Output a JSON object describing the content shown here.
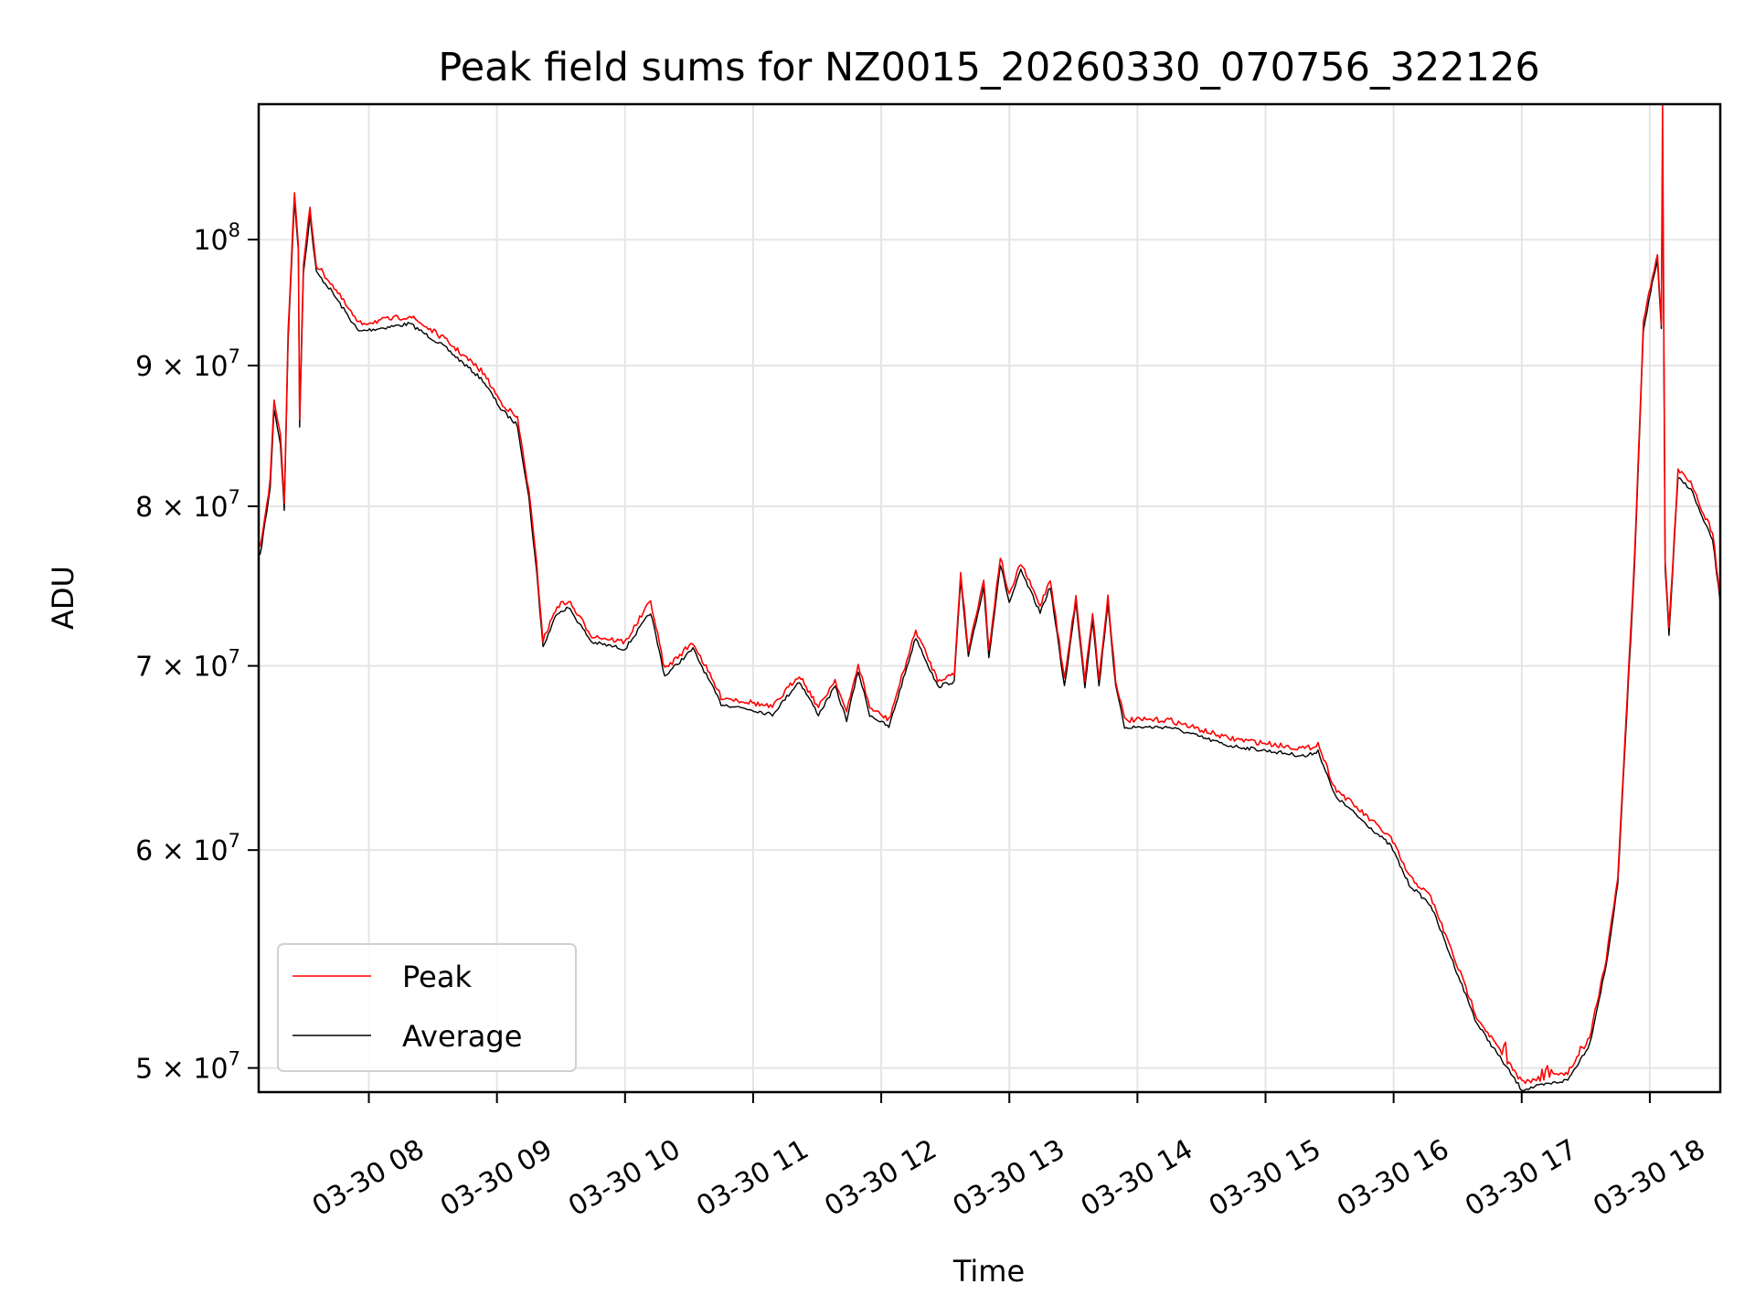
{
  "chart_data": {
    "type": "line",
    "title": "Peak field sums for NZ0015_20260330_070756_322126",
    "xlabel": "Time",
    "ylabel": "ADU",
    "yscale": "log",
    "ylim": [
      49000000,
      112000000
    ],
    "xlim_hours": [
      7.14,
      18.55
    ],
    "grid": true,
    "legend_placement": "lower-left",
    "colors": {
      "Peak": "#ff0000",
      "Average": "#000000",
      "grid": "#e5e5e5"
    },
    "x_ticks": [
      {
        "value": 8,
        "label": "03-30 08"
      },
      {
        "value": 9,
        "label": "03-30 09"
      },
      {
        "value": 10,
        "label": "03-30 10"
      },
      {
        "value": 11,
        "label": "03-30 11"
      },
      {
        "value": 12,
        "label": "03-30 12"
      },
      {
        "value": 13,
        "label": "03-30 13"
      },
      {
        "value": 14,
        "label": "03-30 14"
      },
      {
        "value": 15,
        "label": "03-30 15"
      },
      {
        "value": 16,
        "label": "03-30 16"
      },
      {
        "value": 17,
        "label": "03-30 17"
      },
      {
        "value": 18,
        "label": "03-30 18"
      }
    ],
    "y_ticks": [
      {
        "value": 50000000,
        "base": "5 × 10",
        "exp": "7"
      },
      {
        "value": 60000000,
        "base": "6 × 10",
        "exp": "7"
      },
      {
        "value": 70000000,
        "base": "7 × 10",
        "exp": "7"
      },
      {
        "value": 80000000,
        "base": "8 × 10",
        "exp": "7"
      },
      {
        "value": 90000000,
        "base": "9 × 10",
        "exp": "7"
      },
      {
        "value": 100000000,
        "base": "10",
        "exp": "8"
      }
    ],
    "x_hours": [
      7.15,
      7.23,
      7.26,
      7.31,
      7.34,
      7.37,
      7.42,
      7.45,
      7.46,
      7.49,
      7.54,
      7.59,
      7.7,
      7.92,
      8.32,
      8.58,
      8.89,
      9.03,
      9.16,
      9.25,
      9.31,
      9.36,
      9.47,
      9.56,
      9.74,
      10.0,
      10.2,
      10.31,
      10.53,
      10.75,
      10.98,
      11.15,
      11.36,
      11.51,
      11.64,
      11.73,
      11.82,
      11.91,
      12.06,
      12.27,
      12.44,
      12.57,
      12.62,
      12.68,
      12.8,
      12.84,
      12.93,
      13.0,
      13.09,
      13.24,
      13.32,
      13.43,
      13.52,
      13.59,
      13.65,
      13.7,
      13.77,
      13.83,
      13.9,
      14.25,
      14.7,
      15.32,
      15.41,
      15.54,
      15.98,
      16.12,
      16.29,
      16.65,
      17.0,
      17.36,
      17.53,
      17.66,
      17.75,
      17.88,
      17.95,
      18.02,
      18.06,
      18.09,
      18.1,
      18.12,
      18.15,
      18.22,
      18.32,
      18.42,
      18.49,
      18.55
    ],
    "series": [
      {
        "name": "Peak",
        "values": [
          77200000,
          81700000,
          87300000,
          84800000,
          80200000,
          92500000,
          104200000,
          99600000,
          86100000,
          97900000,
          102700000,
          97900000,
          96500000,
          93200000,
          93800000,
          92100000,
          89500000,
          87300000,
          86100000,
          81000000,
          76200000,
          71500000,
          73600000,
          73900000,
          71800000,
          71400000,
          73900000,
          69800000,
          71400000,
          68200000,
          67900000,
          67600000,
          69500000,
          67600000,
          69200000,
          67300000,
          70100000,
          67600000,
          66900000,
          72100000,
          69200000,
          69500000,
          75700000,
          70900000,
          75300000,
          70900000,
          76700000,
          74200000,
          76300000,
          73600000,
          75300000,
          69200000,
          74200000,
          69200000,
          73200000,
          69200000,
          74200000,
          69200000,
          66900000,
          66900000,
          65900000,
          65300000,
          65600000,
          63200000,
          60600000,
          58700000,
          57700000,
          52200000,
          49400000,
          49800000,
          51300000,
          54800000,
          58700000,
          76500000,
          93300000,
          97000000,
          98800000,
          93300000,
          112000000,
          76500000,
          72200000,
          82400000,
          81700000,
          79500000,
          78300000,
          74200000
        ]
      },
      {
        "name": "Average",
        "values": [
          76700000,
          81200000,
          86800000,
          84300000,
          79700000,
          91900000,
          103500000,
          99000000,
          85600000,
          97300000,
          102000000,
          97300000,
          95900000,
          92600000,
          93200000,
          91500000,
          88900000,
          86800000,
          85600000,
          80500000,
          75700000,
          71100000,
          73200000,
          73500000,
          71400000,
          71000000,
          73200000,
          69400000,
          71000000,
          67800000,
          67500000,
          67200000,
          69100000,
          67200000,
          68800000,
          66900000,
          69700000,
          67200000,
          66500000,
          71700000,
          68800000,
          69100000,
          75200000,
          70500000,
          74800000,
          70500000,
          76200000,
          73800000,
          75800000,
          73200000,
          74800000,
          68800000,
          73800000,
          68800000,
          72800000,
          68800000,
          73800000,
          68800000,
          66500000,
          66500000,
          65500000,
          64900000,
          65200000,
          62800000,
          60200000,
          58300000,
          57300000,
          51900000,
          49100000,
          49500000,
          51000000,
          54500000,
          58300000,
          76000000,
          92700000,
          96400000,
          98200000,
          92700000,
          108500000,
          76000000,
          71800000,
          81900000,
          81200000,
          79000000,
          77800000,
          73800000
        ]
      }
    ]
  }
}
